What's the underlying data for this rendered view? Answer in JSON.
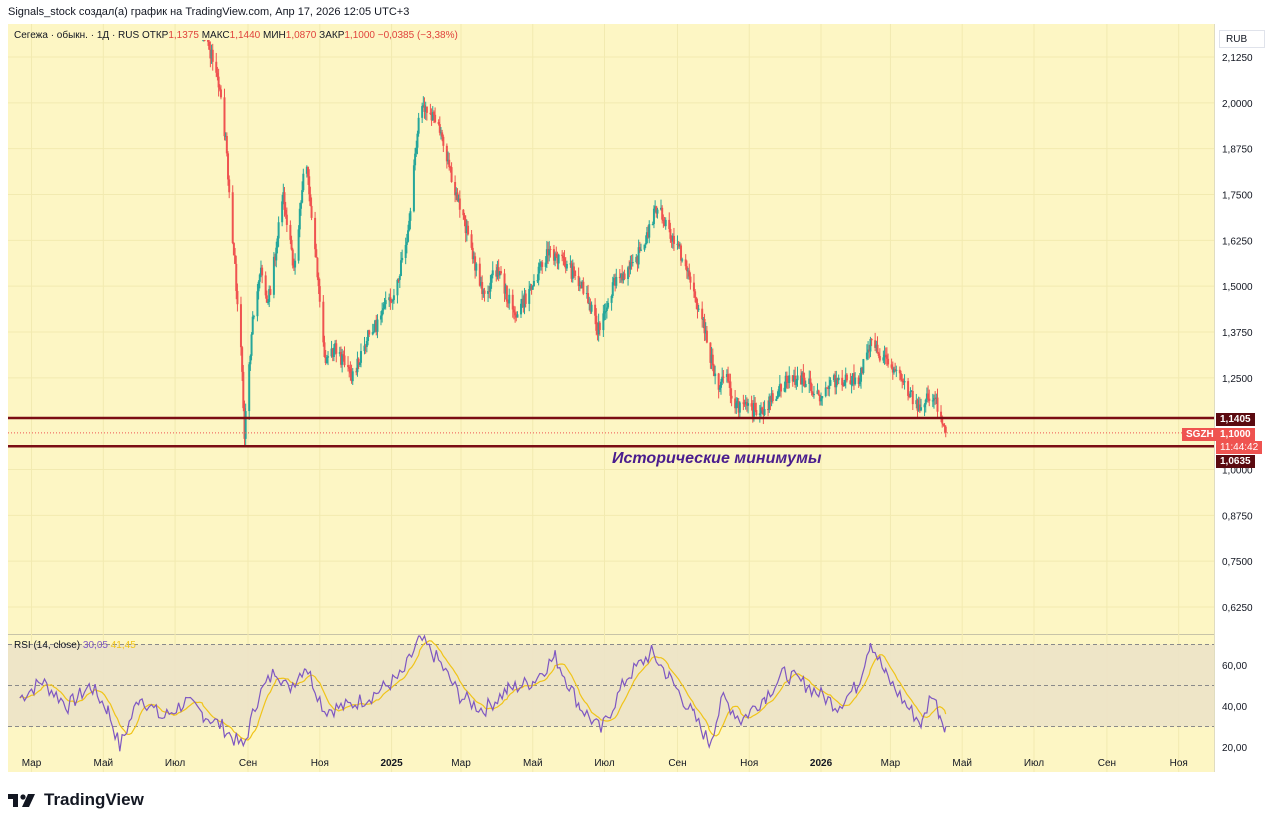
{
  "header": {
    "text": "Signals_stock создал(а) график на TradingView.com, Апр 17, 2026 12:05 UTC+3"
  },
  "legend": {
    "title": "Сегежа · обыкн. · 1Д · RUS",
    "open_label": "ОТКР",
    "open_value": "1,1375",
    "high_label": "МАКС",
    "high_value": "1,1440",
    "low_label": "МИН",
    "low_value": "1,0870",
    "close_label": "ЗАКР",
    "close_value": "1,1000",
    "change": "−0,0385 (−3,38%)"
  },
  "currency": "RUB",
  "rsi_legend": {
    "label": "RSI (14, close)",
    "value": "30,05",
    "ma_value": "41,45"
  },
  "annotation": "Исторические минимумы",
  "price_tags": {
    "resistance": "1,1405",
    "ticker": "SGZH",
    "last": "1,1000",
    "countdown": "11:44:42",
    "support": "1,0635"
  },
  "footer": {
    "brand": "TradingView",
    "logo_icon": "tradingview-logo-icon"
  },
  "colors": {
    "up": "#26a69a",
    "down": "#ef5350",
    "background": "#fdf6c4",
    "level_line": "#7b0d14",
    "rsi_line": "#7e57c2",
    "rsi_ma": "#f0c419"
  },
  "chart_data": [
    {
      "type": "candlestick",
      "title": "Сегежа · обыкн. · 1Д · RUS",
      "ylim": [
        0.57,
        2.19
      ],
      "y_ticks": [
        "2,1250",
        "2,0000",
        "1,8750",
        "1,7500",
        "1,6250",
        "1,5000",
        "1,3750",
        "1,2500",
        "1,0000",
        "0,8750",
        "0,7500",
        "0,6250"
      ],
      "x_ticks": [
        "Мар",
        "Май",
        "Июл",
        "Сен",
        "Ноя",
        "2025",
        "Мар",
        "Май",
        "Июл",
        "Сен",
        "Ноя",
        "2026",
        "Мар",
        "Май",
        "Июл",
        "Сен",
        "Ноя"
      ],
      "horizontal_levels": [
        1.1405,
        1.0635
      ],
      "last_price": 1.1,
      "close_path_anchors": [
        {
          "date": "2024-07-25",
          "close": 2.18
        },
        {
          "date": "2024-08-05",
          "close": 2.1
        },
        {
          "date": "2024-08-13",
          "close": 1.9
        },
        {
          "date": "2024-08-20",
          "close": 1.58
        },
        {
          "date": "2024-08-26",
          "close": 1.35
        },
        {
          "date": "2024-08-29",
          "close": 1.1
        },
        {
          "date": "2024-09-05",
          "close": 1.4
        },
        {
          "date": "2024-09-12",
          "close": 1.55
        },
        {
          "date": "2024-09-18",
          "close": 1.45
        },
        {
          "date": "2024-10-01",
          "close": 1.75
        },
        {
          "date": "2024-10-10",
          "close": 1.55
        },
        {
          "date": "2024-10-20",
          "close": 1.85
        },
        {
          "date": "2024-10-28",
          "close": 1.6
        },
        {
          "date": "2024-11-05",
          "close": 1.3
        },
        {
          "date": "2024-11-15",
          "close": 1.33
        },
        {
          "date": "2024-11-28",
          "close": 1.25
        },
        {
          "date": "2024-12-10",
          "close": 1.35
        },
        {
          "date": "2024-12-20",
          "close": 1.4
        },
        {
          "date": "2025-01-05",
          "close": 1.5
        },
        {
          "date": "2025-01-15",
          "close": 1.65
        },
        {
          "date": "2025-01-25",
          "close": 2.0
        },
        {
          "date": "2025-02-10",
          "close": 1.95
        },
        {
          "date": "2025-02-25",
          "close": 1.75
        },
        {
          "date": "2025-03-10",
          "close": 1.6
        },
        {
          "date": "2025-03-20",
          "close": 1.47
        },
        {
          "date": "2025-04-01",
          "close": 1.55
        },
        {
          "date": "2025-04-15",
          "close": 1.42
        },
        {
          "date": "2025-05-01",
          "close": 1.5
        },
        {
          "date": "2025-05-15",
          "close": 1.6
        },
        {
          "date": "2025-06-01",
          "close": 1.55
        },
        {
          "date": "2025-06-15",
          "close": 1.48
        },
        {
          "date": "2025-06-25",
          "close": 1.38
        },
        {
          "date": "2025-07-10",
          "close": 1.52
        },
        {
          "date": "2025-07-25",
          "close": 1.55
        },
        {
          "date": "2025-08-05",
          "close": 1.63
        },
        {
          "date": "2025-08-15",
          "close": 1.72
        },
        {
          "date": "2025-08-25",
          "close": 1.65
        },
        {
          "date": "2025-09-05",
          "close": 1.58
        },
        {
          "date": "2025-09-15",
          "close": 1.48
        },
        {
          "date": "2025-09-25",
          "close": 1.37
        },
        {
          "date": "2025-10-05",
          "close": 1.22
        },
        {
          "date": "2025-10-12",
          "close": 1.25
        },
        {
          "date": "2025-10-20",
          "close": 1.18
        },
        {
          "date": "2025-11-01",
          "close": 1.16
        },
        {
          "date": "2025-11-15",
          "close": 1.17
        },
        {
          "date": "2025-12-01",
          "close": 1.24
        },
        {
          "date": "2025-12-15",
          "close": 1.25
        },
        {
          "date": "2026-01-01",
          "close": 1.2
        },
        {
          "date": "2026-01-15",
          "close": 1.25
        },
        {
          "date": "2026-02-01",
          "close": 1.24
        },
        {
          "date": "2026-02-12",
          "close": 1.34
        },
        {
          "date": "2026-02-25",
          "close": 1.3
        },
        {
          "date": "2026-03-10",
          "close": 1.24
        },
        {
          "date": "2026-03-25",
          "close": 1.17
        },
        {
          "date": "2026-04-05",
          "close": 1.2
        },
        {
          "date": "2026-04-12",
          "close": 1.16
        },
        {
          "date": "2026-04-17",
          "close": 1.1
        }
      ]
    },
    {
      "type": "line",
      "title": "RSI (14, close)",
      "ylim": [
        18,
        74
      ],
      "y_ticks": [
        "60,00",
        "40,00",
        "20,00"
      ],
      "levels": [
        70,
        50,
        30
      ],
      "band": [
        30,
        70
      ],
      "last_value": 30.05,
      "rsi_anchors": [
        {
          "date": "2024-02-20",
          "value": 44
        },
        {
          "date": "2024-03-10",
          "value": 52
        },
        {
          "date": "2024-04-01",
          "value": 40
        },
        {
          "date": "2024-04-20",
          "value": 50
        },
        {
          "date": "2024-05-05",
          "value": 38
        },
        {
          "date": "2024-05-15",
          "value": 20
        },
        {
          "date": "2024-06-01",
          "value": 45
        },
        {
          "date": "2024-06-20",
          "value": 34
        },
        {
          "date": "2024-07-10",
          "value": 42
        },
        {
          "date": "2024-07-25",
          "value": 36
        },
        {
          "date": "2024-08-10",
          "value": 30
        },
        {
          "date": "2024-08-20",
          "value": 24
        },
        {
          "date": "2024-08-28",
          "value": 20
        },
        {
          "date": "2024-09-10",
          "value": 45
        },
        {
          "date": "2024-09-25",
          "value": 58
        },
        {
          "date": "2024-10-05",
          "value": 48
        },
        {
          "date": "2024-10-20",
          "value": 60
        },
        {
          "date": "2024-11-05",
          "value": 38
        },
        {
          "date": "2024-11-25",
          "value": 40
        },
        {
          "date": "2024-12-15",
          "value": 45
        },
        {
          "date": "2025-01-10",
          "value": 55
        },
        {
          "date": "2025-01-25",
          "value": 73
        },
        {
          "date": "2025-02-10",
          "value": 62
        },
        {
          "date": "2025-02-28",
          "value": 45
        },
        {
          "date": "2025-03-20",
          "value": 38
        },
        {
          "date": "2025-04-10",
          "value": 48
        },
        {
          "date": "2025-05-01",
          "value": 52
        },
        {
          "date": "2025-05-20",
          "value": 64
        },
        {
          "date": "2025-06-10",
          "value": 40
        },
        {
          "date": "2025-06-28",
          "value": 28
        },
        {
          "date": "2025-07-20",
          "value": 54
        },
        {
          "date": "2025-08-10",
          "value": 66
        },
        {
          "date": "2025-08-25",
          "value": 54
        },
        {
          "date": "2025-09-15",
          "value": 35
        },
        {
          "date": "2025-09-28",
          "value": 22
        },
        {
          "date": "2025-10-10",
          "value": 44
        },
        {
          "date": "2025-10-25",
          "value": 33
        },
        {
          "date": "2025-11-15",
          "value": 45
        },
        {
          "date": "2025-12-01",
          "value": 56
        },
        {
          "date": "2025-12-20",
          "value": 50
        },
        {
          "date": "2026-01-15",
          "value": 40
        },
        {
          "date": "2026-02-01",
          "value": 50
        },
        {
          "date": "2026-02-12",
          "value": 72
        },
        {
          "date": "2026-02-25",
          "value": 55
        },
        {
          "date": "2026-03-15",
          "value": 40
        },
        {
          "date": "2026-03-28",
          "value": 31
        },
        {
          "date": "2026-04-05",
          "value": 47
        },
        {
          "date": "2026-04-12",
          "value": 36
        },
        {
          "date": "2026-04-17",
          "value": 30
        }
      ]
    }
  ]
}
